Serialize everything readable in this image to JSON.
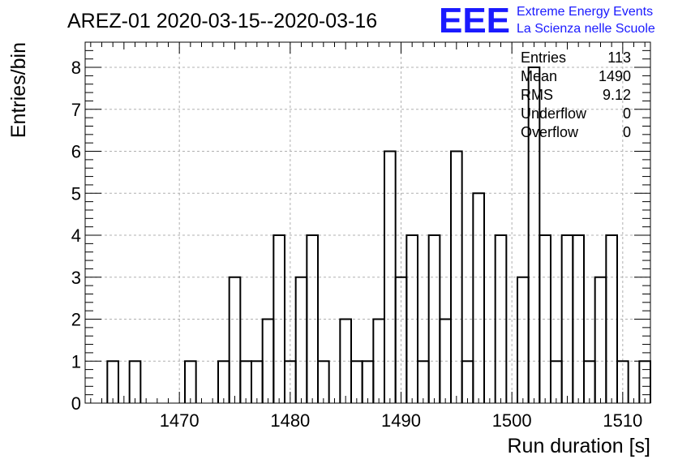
{
  "header": {
    "title": "AREZ-01 2020-03-15--2020-03-16",
    "logo_text": "EEE",
    "logo_line1": "Extreme Energy Events",
    "logo_line2": "La Scienza nelle Scuole"
  },
  "colors": {
    "line": "#000000",
    "grid": "#b0b0b0",
    "logo": "#1a1aff"
  },
  "stats": [
    {
      "label": "Entries",
      "value": "113"
    },
    {
      "label": "Mean",
      "value": "1490"
    },
    {
      "label": "RMS",
      "value": "9.12"
    },
    {
      "label": "Underflow",
      "value": "0"
    },
    {
      "label": "Overflow",
      "value": "0"
    }
  ],
  "chart_data": {
    "type": "histogram",
    "title": "AREZ-01 2020-03-15--2020-03-16",
    "xlabel": "Run duration [s]",
    "ylabel": "Entries/bin",
    "xlim": [
      1461.5,
      1512.5
    ],
    "ylim": [
      0,
      8.6
    ],
    "bin_width": 1,
    "x_ticks": [
      1470,
      1480,
      1490,
      1500,
      1510
    ],
    "y_ticks": [
      0,
      1,
      2,
      3,
      4,
      5,
      6,
      7,
      8
    ],
    "grid": true,
    "bins": [
      {
        "x": 1462,
        "y": 0
      },
      {
        "x": 1463,
        "y": 0
      },
      {
        "x": 1464,
        "y": 1
      },
      {
        "x": 1465,
        "y": 0
      },
      {
        "x": 1466,
        "y": 1
      },
      {
        "x": 1467,
        "y": 0
      },
      {
        "x": 1468,
        "y": 0
      },
      {
        "x": 1469,
        "y": 0
      },
      {
        "x": 1470,
        "y": 0
      },
      {
        "x": 1471,
        "y": 1
      },
      {
        "x": 1472,
        "y": 0
      },
      {
        "x": 1473,
        "y": 0
      },
      {
        "x": 1474,
        "y": 1
      },
      {
        "x": 1475,
        "y": 3
      },
      {
        "x": 1476,
        "y": 1
      },
      {
        "x": 1477,
        "y": 1
      },
      {
        "x": 1478,
        "y": 2
      },
      {
        "x": 1479,
        "y": 4
      },
      {
        "x": 1480,
        "y": 1
      },
      {
        "x": 1481,
        "y": 3
      },
      {
        "x": 1482,
        "y": 4
      },
      {
        "x": 1483,
        "y": 1
      },
      {
        "x": 1484,
        "y": 0
      },
      {
        "x": 1485,
        "y": 2
      },
      {
        "x": 1486,
        "y": 1
      },
      {
        "x": 1487,
        "y": 1
      },
      {
        "x": 1488,
        "y": 2
      },
      {
        "x": 1489,
        "y": 6
      },
      {
        "x": 1490,
        "y": 3
      },
      {
        "x": 1491,
        "y": 4
      },
      {
        "x": 1492,
        "y": 1
      },
      {
        "x": 1493,
        "y": 4
      },
      {
        "x": 1494,
        "y": 2
      },
      {
        "x": 1495,
        "y": 6
      },
      {
        "x": 1496,
        "y": 1
      },
      {
        "x": 1497,
        "y": 5
      },
      {
        "x": 1498,
        "y": 0
      },
      {
        "x": 1499,
        "y": 4
      },
      {
        "x": 1500,
        "y": 0
      },
      {
        "x": 1501,
        "y": 3
      },
      {
        "x": 1502,
        "y": 8
      },
      {
        "x": 1503,
        "y": 4
      },
      {
        "x": 1504,
        "y": 1
      },
      {
        "x": 1505,
        "y": 4
      },
      {
        "x": 1506,
        "y": 4
      },
      {
        "x": 1507,
        "y": 1
      },
      {
        "x": 1508,
        "y": 3
      },
      {
        "x": 1509,
        "y": 4
      },
      {
        "x": 1510,
        "y": 1
      },
      {
        "x": 1511,
        "y": 0
      },
      {
        "x": 1512,
        "y": 1
      }
    ]
  }
}
